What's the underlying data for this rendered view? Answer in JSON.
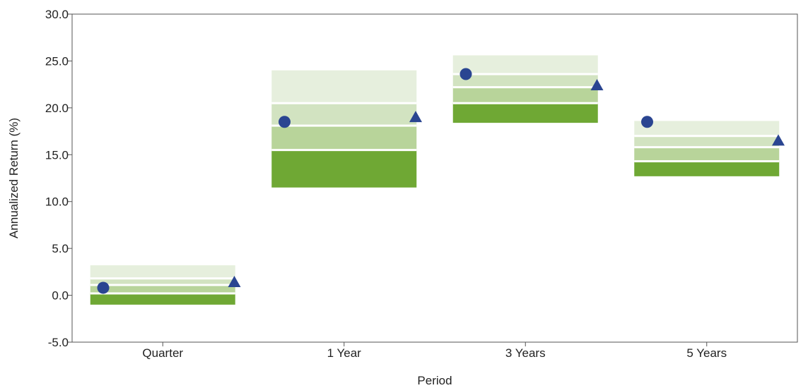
{
  "chart_data": {
    "type": "floating-bar",
    "xlabel": "Period",
    "ylabel": "Annualized Return (%)",
    "ylim": [
      -5.0,
      30.0
    ],
    "yticks": [
      -5.0,
      0.0,
      5.0,
      10.0,
      15.0,
      20.0,
      25.0,
      30.0
    ],
    "categories": [
      "Quarter",
      "1 Year",
      "3 Years",
      "5 Years"
    ],
    "range_bands": [
      {
        "category": "Quarter",
        "top": 3.2,
        "upper_quartile": 1.8,
        "median": 1.1,
        "lower_quartile": 0.2,
        "bottom": -1.0
      },
      {
        "category": "1 Year",
        "top": 24.0,
        "upper_quartile": 20.5,
        "median": 18.1,
        "lower_quartile": 15.5,
        "bottom": 11.5
      },
      {
        "category": "3 Years",
        "top": 25.6,
        "upper_quartile": 23.6,
        "median": 22.2,
        "lower_quartile": 20.5,
        "bottom": 18.4
      },
      {
        "category": "5 Years",
        "top": 18.6,
        "upper_quartile": 17.0,
        "median": 15.8,
        "lower_quartile": 14.3,
        "bottom": 12.7
      }
    ],
    "markers": [
      {
        "shape": "circle",
        "values": [
          0.8,
          18.5,
          23.6,
          18.5
        ]
      },
      {
        "shape": "triangle",
        "values": [
          1.4,
          19.0,
          22.4,
          16.5
        ]
      }
    ],
    "colors": {
      "band_top": "#e6efdd",
      "band_upper_mid": "#d2e3c1",
      "band_lower_mid": "#b8d49a",
      "band_bottom": "#6fa834",
      "marker": "#2a4591"
    },
    "grid": false,
    "legend": "none"
  }
}
